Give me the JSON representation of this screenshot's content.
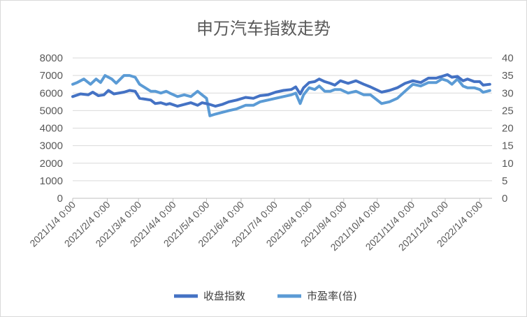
{
  "chart_data": {
    "type": "line",
    "title": "申万汽车指数走势",
    "x_tick_labels": [
      "2021/1/4 0:00",
      "2021/2/4 0:00",
      "2021/3/4 0:00",
      "2021/4/4 0:00",
      "2021/5/4 0:00",
      "2021/6/4 0:00",
      "2021/7/4 0:00",
      "2021/8/4 0:00",
      "2021/9/4 0:00",
      "2021/10/4 0:00",
      "2021/11/4 0:00",
      "2021/12/4 0:00",
      "2022/1/4 0:00"
    ],
    "x_dates": [
      "2021-01-04",
      "2021-02-04",
      "2021-03-04",
      "2021-04-04",
      "2021-05-04",
      "2021-06-04",
      "2021-07-04",
      "2021-08-04",
      "2021-09-04",
      "2021-10-04",
      "2021-11-04",
      "2021-12-04",
      "2022-01-04"
    ],
    "x_range": [
      "2021-01-04",
      "2022-01-15"
    ],
    "y_left": {
      "min": 0,
      "max": 8000,
      "ticks": [
        "0",
        "1000",
        "2000",
        "3000",
        "4000",
        "5000",
        "6000",
        "7000",
        "8000"
      ]
    },
    "y_right": {
      "min": 0,
      "max": 40,
      "ticks": [
        "0",
        "5",
        "10",
        "15",
        "20",
        "25",
        "30",
        "35",
        "40"
      ]
    },
    "grid": true,
    "legend_position": "bottom",
    "series": [
      {
        "name": "收盘指数",
        "axis": "left",
        "color": "#4472c4",
        "points": [
          [
            "2021-01-04",
            5800
          ],
          [
            "2021-01-11",
            5950
          ],
          [
            "2021-01-18",
            5900
          ],
          [
            "2021-01-22",
            6050
          ],
          [
            "2021-01-27",
            5850
          ],
          [
            "2021-02-01",
            5900
          ],
          [
            "2021-02-05",
            6150
          ],
          [
            "2021-02-10",
            5950
          ],
          [
            "2021-02-19",
            6050
          ],
          [
            "2021-02-24",
            6150
          ],
          [
            "2021-03-01",
            6100
          ],
          [
            "2021-03-05",
            5700
          ],
          [
            "2021-03-10",
            5650
          ],
          [
            "2021-03-15",
            5600
          ],
          [
            "2021-03-19",
            5400
          ],
          [
            "2021-03-24",
            5450
          ],
          [
            "2021-03-29",
            5350
          ],
          [
            "2021-04-01",
            5400
          ],
          [
            "2021-04-08",
            5250
          ],
          [
            "2021-04-14",
            5350
          ],
          [
            "2021-04-20",
            5450
          ],
          [
            "2021-04-26",
            5300
          ],
          [
            "2021-04-30",
            5450
          ],
          [
            "2021-05-07",
            5350
          ],
          [
            "2021-05-12",
            5250
          ],
          [
            "2021-05-18",
            5350
          ],
          [
            "2021-05-24",
            5500
          ],
          [
            "2021-05-31",
            5600
          ],
          [
            "2021-06-08",
            5750
          ],
          [
            "2021-06-15",
            5700
          ],
          [
            "2021-06-21",
            5850
          ],
          [
            "2021-06-28",
            5900
          ],
          [
            "2021-07-05",
            6050
          ],
          [
            "2021-07-12",
            6150
          ],
          [
            "2021-07-19",
            6200
          ],
          [
            "2021-07-23",
            6350
          ],
          [
            "2021-07-27",
            5950
          ],
          [
            "2021-07-30",
            6300
          ],
          [
            "2021-08-04",
            6600
          ],
          [
            "2021-08-09",
            6650
          ],
          [
            "2021-08-13",
            6800
          ],
          [
            "2021-08-18",
            6650
          ],
          [
            "2021-08-23",
            6550
          ],
          [
            "2021-08-27",
            6450
          ],
          [
            "2021-09-01",
            6700
          ],
          [
            "2021-09-08",
            6550
          ],
          [
            "2021-09-15",
            6700
          ],
          [
            "2021-09-22",
            6500
          ],
          [
            "2021-09-28",
            6350
          ],
          [
            "2021-10-08",
            6050
          ],
          [
            "2021-10-15",
            6150
          ],
          [
            "2021-10-22",
            6300
          ],
          [
            "2021-10-29",
            6550
          ],
          [
            "2021-11-05",
            6700
          ],
          [
            "2021-11-12",
            6600
          ],
          [
            "2021-11-19",
            6850
          ],
          [
            "2021-11-26",
            6850
          ],
          [
            "2021-12-01",
            6950
          ],
          [
            "2021-12-06",
            7050
          ],
          [
            "2021-12-10",
            6900
          ],
          [
            "2021-12-15",
            6950
          ],
          [
            "2021-12-20",
            6700
          ],
          [
            "2021-12-24",
            6800
          ],
          [
            "2021-12-30",
            6650
          ],
          [
            "2022-01-04",
            6650
          ],
          [
            "2022-01-07",
            6450
          ],
          [
            "2022-01-13",
            6500
          ]
        ]
      },
      {
        "name": "市盈率(倍)",
        "axis": "right",
        "color": "#5b9bd5",
        "points": [
          [
            "2021-01-04",
            32.5
          ],
          [
            "2021-01-08",
            33
          ],
          [
            "2021-01-14",
            34
          ],
          [
            "2021-01-20",
            32.5
          ],
          [
            "2021-01-25",
            34
          ],
          [
            "2021-01-29",
            33
          ],
          [
            "2021-02-02",
            35
          ],
          [
            "2021-02-08",
            34
          ],
          [
            "2021-02-12",
            32.8
          ],
          [
            "2021-02-19",
            35
          ],
          [
            "2021-02-24",
            35
          ],
          [
            "2021-03-01",
            34.5
          ],
          [
            "2021-03-05",
            32.5
          ],
          [
            "2021-03-10",
            31.5
          ],
          [
            "2021-03-15",
            30.5
          ],
          [
            "2021-03-19",
            30.5
          ],
          [
            "2021-03-24",
            30
          ],
          [
            "2021-03-29",
            30.5
          ],
          [
            "2021-04-01",
            30
          ],
          [
            "2021-04-08",
            29
          ],
          [
            "2021-04-14",
            29.5
          ],
          [
            "2021-04-20",
            29
          ],
          [
            "2021-04-26",
            30.5
          ],
          [
            "2021-04-30",
            29.5
          ],
          [
            "2021-05-04",
            28.5
          ],
          [
            "2021-05-07",
            23.5
          ],
          [
            "2021-05-12",
            24
          ],
          [
            "2021-05-18",
            24.5
          ],
          [
            "2021-05-24",
            25
          ],
          [
            "2021-05-31",
            25.5
          ],
          [
            "2021-06-08",
            26.5
          ],
          [
            "2021-06-15",
            26.5
          ],
          [
            "2021-06-21",
            27.5
          ],
          [
            "2021-06-28",
            28
          ],
          [
            "2021-07-05",
            28.5
          ],
          [
            "2021-07-12",
            29
          ],
          [
            "2021-07-19",
            29.5
          ],
          [
            "2021-07-23",
            30
          ],
          [
            "2021-07-27",
            27
          ],
          [
            "2021-07-30",
            29.5
          ],
          [
            "2021-08-04",
            31.5
          ],
          [
            "2021-08-09",
            31
          ],
          [
            "2021-08-13",
            32
          ],
          [
            "2021-08-18",
            30.5
          ],
          [
            "2021-08-23",
            30.5
          ],
          [
            "2021-08-27",
            31
          ],
          [
            "2021-09-01",
            31
          ],
          [
            "2021-09-08",
            30
          ],
          [
            "2021-09-15",
            30.5
          ],
          [
            "2021-09-22",
            29.5
          ],
          [
            "2021-09-28",
            29.5
          ],
          [
            "2021-10-08",
            27
          ],
          [
            "2021-10-15",
            27.5
          ],
          [
            "2021-10-22",
            28.5
          ],
          [
            "2021-10-29",
            30.5
          ],
          [
            "2021-11-05",
            32.5
          ],
          [
            "2021-11-12",
            32
          ],
          [
            "2021-11-19",
            33
          ],
          [
            "2021-11-26",
            33
          ],
          [
            "2021-12-01",
            34
          ],
          [
            "2021-12-06",
            33.5
          ],
          [
            "2021-12-10",
            32.5
          ],
          [
            "2021-12-15",
            34
          ],
          [
            "2021-12-20",
            32
          ],
          [
            "2021-12-24",
            31.5
          ],
          [
            "2021-12-30",
            31.5
          ],
          [
            "2022-01-04",
            31
          ],
          [
            "2022-01-07",
            30.2
          ],
          [
            "2022-01-13",
            30.7
          ]
        ]
      }
    ]
  }
}
